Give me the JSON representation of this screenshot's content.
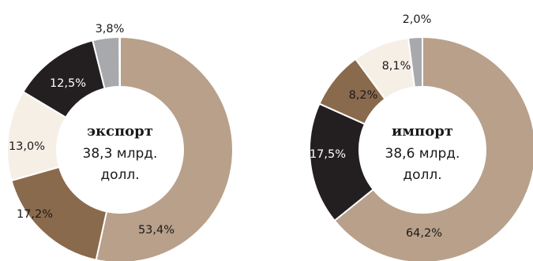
{
  "colors": {
    "tan": "#b8a08a",
    "brown": "#8a6a4c",
    "dark": "#231f20",
    "cream": "#f6efe6",
    "gray": "#a7a9ac",
    "white": "#ffffff"
  },
  "chart_data": [
    {
      "type": "pie",
      "title": "экспорт",
      "center_lines": [
        "38,3 млрд.",
        "долл."
      ],
      "slices": [
        {
          "value": 53.4,
          "label": "53,4%",
          "color": "tan"
        },
        {
          "value": 17.2,
          "label": "17,2%",
          "color": "brown"
        },
        {
          "value": 13.0,
          "label": "13,0%",
          "color": "cream"
        },
        {
          "value": 12.5,
          "label": "12,5%",
          "color": "dark"
        },
        {
          "value": 3.8,
          "label": "3,8%",
          "color": "gray"
        }
      ]
    },
    {
      "type": "pie",
      "title": "импорт",
      "center_lines": [
        "38,6 млрд.",
        "долл."
      ],
      "slices": [
        {
          "value": 64.2,
          "label": "64,2%",
          "color": "tan"
        },
        {
          "value": 17.5,
          "label": "17,5%",
          "color": "dark"
        },
        {
          "value": 8.2,
          "label": "8,2%",
          "color": "brown"
        },
        {
          "value": 8.1,
          "label": "8,1%",
          "color": "cream"
        },
        {
          "value": 2.0,
          "label": "2,0%",
          "color": "gray"
        }
      ]
    }
  ]
}
